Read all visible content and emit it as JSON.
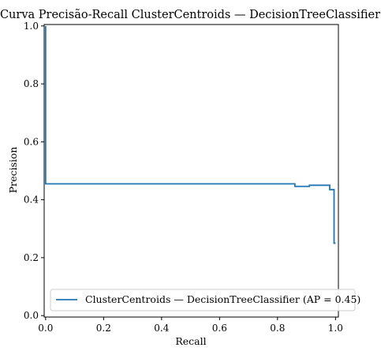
{
  "chart_data": {
    "type": "line",
    "title": "Curva Precisão-Recall ClusterCentroids — DecisionTreeClassifier",
    "xlabel": "Recall",
    "ylabel": "Precision",
    "xlim": [
      -0.005,
      1.01
    ],
    "ylim": [
      -0.005,
      1.005
    ],
    "xticks": [
      0.0,
      0.2,
      0.4,
      0.6,
      0.8,
      1.0
    ],
    "xtick_labels": [
      "0.0",
      "0.2",
      "0.4",
      "0.6",
      "0.8",
      "1.0"
    ],
    "yticks": [
      0.0,
      0.2,
      0.4,
      0.6,
      0.8,
      1.0
    ],
    "ytick_labels": [
      "0.0",
      "0.2",
      "0.4",
      "0.6",
      "0.8",
      "1.0"
    ],
    "grid": false,
    "legend_position": "lower-right",
    "step_style": "post",
    "series": [
      {
        "name": "ClusterCentroids — DecisionTreeClassifier (AP = 0.45)",
        "color": "#1f77b4",
        "x": [
          0.0,
          0.0,
          0.86,
          0.86,
          0.91,
          0.91,
          0.98,
          0.98,
          0.995,
          0.995,
          1.0
        ],
        "y": [
          1.0,
          0.455,
          0.455,
          0.446,
          0.446,
          0.45,
          0.45,
          0.435,
          0.435,
          0.25,
          0.25
        ]
      }
    ]
  }
}
